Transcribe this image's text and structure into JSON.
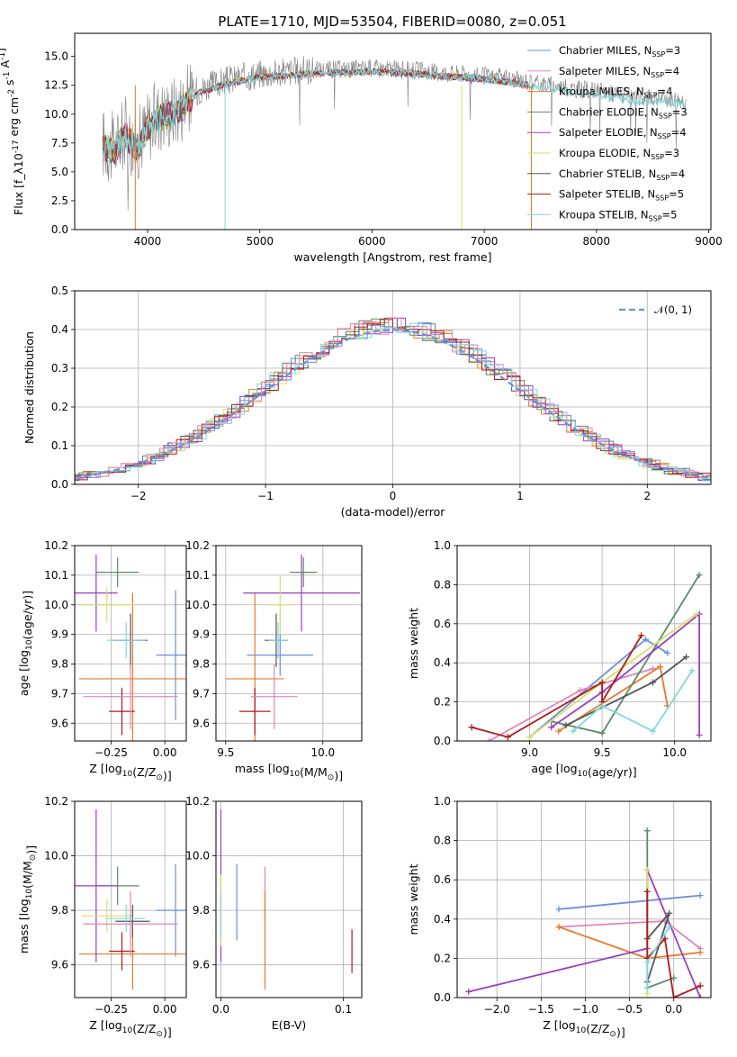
{
  "title": "PLATE=1710, MJD=53504, FIBERID=0080, z=0.051",
  "colors": [
    "#6a8fdc",
    "#e67b2a",
    "#5a8a6a",
    "#9b3fbf",
    "#d8df6a",
    "#555555",
    "#b01818",
    "#e086b8",
    "#80d8dc"
  ],
  "chart_data": [
    {
      "type": "line",
      "title": "PLATE=1710, MJD=53504, FIBERID=0080, z=0.051",
      "xlabel": "wavelength [Angstrom, rest frame]",
      "ylabel": "Flux [f_λ10^-17 erg cm^-2 s^-1 A^-1]",
      "xlim": [
        3350,
        9020
      ],
      "ylim": [
        0,
        17
      ],
      "xticks": [
        "4000",
        "5000",
        "6000",
        "7000",
        "8000",
        "9000"
      ],
      "yticks": [
        "0.0",
        "2.5",
        "5.0",
        "7.5",
        "10.0",
        "12.5",
        "15.0"
      ],
      "legend_position": "top-right",
      "legend": [
        {
          "pre": "Chabrier MILES, N",
          "sub": "SSP",
          "post": "=3",
          "color": "#6a8fdc"
        },
        {
          "pre": "Salpeter MILES, N",
          "sub": "SSP",
          "post": "=4",
          "color": "#e086b8"
        },
        {
          "pre": "Kroupa MILES, N",
          "sub": "SSP",
          "post": "=4",
          "color": "#e67b2a"
        },
        {
          "pre": "Chabrier ELODIE, N",
          "sub": "SSP",
          "post": "=3",
          "color": "#5a8a6a"
        },
        {
          "pre": "Salpeter ELODIE, N",
          "sub": "SSP",
          "post": "=4",
          "color": "#9b3fbf"
        },
        {
          "pre": "Kroupa ELODIE, N",
          "sub": "SSP",
          "post": "=3",
          "color": "#d8df6a"
        },
        {
          "pre": "Chabrier STELIB, N",
          "sub": "SSP",
          "post": "=4",
          "color": "#555555"
        },
        {
          "pre": "Salpeter STELIB, N",
          "sub": "SSP",
          "post": "=5",
          "color": "#b01818"
        },
        {
          "pre": "Kroupa STELIB, N",
          "sub": "SSP",
          "post": "=5",
          "color": "#80d8dc"
        }
      ],
      "continuum": {
        "x": [
          3600,
          3700,
          3800,
          3900,
          4000,
          4100,
          4200,
          4300,
          4400,
          4500,
          4600,
          4700,
          4800,
          4900,
          5000,
          5200,
          5400,
          5600,
          5800,
          6000,
          6200,
          6400,
          6600,
          6800,
          7000,
          7200,
          7400,
          7600,
          7800,
          8000,
          8200,
          8400,
          8600,
          8800
        ],
        "y": [
          7.5,
          7.0,
          8.5,
          7.2,
          9.0,
          10.0,
          10.2,
          10.8,
          11.8,
          12.3,
          12.6,
          12.9,
          13.1,
          13.3,
          13.5,
          13.6,
          13.8,
          13.9,
          13.9,
          14.0,
          13.9,
          13.8,
          13.6,
          13.5,
          13.3,
          13.1,
          12.8,
          12.5,
          12.2,
          12.0,
          11.7,
          11.4,
          11.4,
          11.2
        ]
      }
    },
    {
      "type": "step",
      "xlabel": "(data-model)/error",
      "ylabel": "Normed distribution",
      "xlim": [
        -2.5,
        2.5
      ],
      "ylim": [
        0,
        0.5
      ],
      "xticks": [
        "−2",
        "−1",
        "0",
        "1",
        "2"
      ],
      "yticks": [
        "0.0",
        "0.1",
        "0.2",
        "0.3",
        "0.4",
        "0.5"
      ],
      "legend": "𝒩(0, 1)",
      "legend_position": "top-right",
      "normal_curve": {
        "mean": 0,
        "sigma": 1
      }
    },
    {
      "type": "errorbar",
      "xlabel": "Z [log10(Z/Z☉)]",
      "ylabel": "age  [log10(age/yr)]",
      "xlim": [
        -0.42,
        0.1
      ],
      "ylim": [
        9.54,
        10.2
      ],
      "xticks": [
        "−0.25",
        "0.00"
      ],
      "yticks": [
        "9.6",
        "9.7",
        "9.8",
        "9.9",
        "10.0",
        "10.1",
        "10.2"
      ],
      "points": [
        {
          "x": 0.05,
          "xerr": 0.09,
          "y": 9.83,
          "yerr": 0.22,
          "color": "#6a8fdc"
        },
        {
          "x": -0.15,
          "xerr": 0.25,
          "y": 9.75,
          "yerr": 0.29,
          "color": "#e67b2a"
        },
        {
          "x": -0.22,
          "xerr": 0.1,
          "y": 10.11,
          "yerr": 0.05,
          "color": "#5a8a6a"
        },
        {
          "x": -0.32,
          "xerr": 0.1,
          "y": 10.04,
          "yerr": 0.13,
          "color": "#9b3fbf"
        },
        {
          "x": -0.27,
          "xerr": 0.13,
          "y": 10.0,
          "yerr": 0.06,
          "color": "#d8df6a"
        },
        {
          "x": -0.16,
          "xerr": 0.08,
          "y": 9.88,
          "yerr": 0.09,
          "color": "#555555"
        },
        {
          "x": -0.2,
          "xerr": 0.06,
          "y": 9.64,
          "yerr": 0.08,
          "color": "#b01818"
        },
        {
          "x": -0.16,
          "xerr": 0.22,
          "y": 9.69,
          "yerr": 0.11,
          "color": "#e086b8"
        },
        {
          "x": -0.18,
          "xerr": 0.09,
          "y": 9.88,
          "yerr": 0.06,
          "color": "#80d8dc"
        }
      ]
    },
    {
      "type": "errorbar",
      "xlabel": "mass [log10(M/M☉)]",
      "ylabel": "",
      "xlim": [
        9.45,
        10.2
      ],
      "ylim": [
        9.54,
        10.2
      ],
      "xticks": [
        "9.5",
        "10.0"
      ],
      "yticks": [
        "9.6",
        "9.7",
        "9.8",
        "9.9",
        "10.0",
        "10.1",
        "10.2"
      ],
      "points": [
        {
          "x": 9.78,
          "xerr": 0.17,
          "y": 9.83,
          "yerr": 0.07,
          "color": "#6a8fdc"
        },
        {
          "x": 9.65,
          "xerr": 0.15,
          "y": 9.75,
          "yerr": 0.29,
          "color": "#e67b2a"
        },
        {
          "x": 9.9,
          "xerr": 0.07,
          "y": 10.11,
          "yerr": 0.05,
          "color": "#5a8a6a"
        },
        {
          "x": 9.89,
          "xerr": 0.3,
          "y": 10.04,
          "yerr": 0.13,
          "color": "#9b3fbf"
        },
        {
          "x": 9.78,
          "xerr": 0.06,
          "y": 10.0,
          "yerr": 0.1,
          "color": "#d8df6a"
        },
        {
          "x": 9.76,
          "xerr": 0.06,
          "y": 9.88,
          "yerr": 0.09,
          "color": "#555555"
        },
        {
          "x": 9.65,
          "xerr": 0.08,
          "y": 9.64,
          "yerr": 0.08,
          "color": "#b01818"
        },
        {
          "x": 9.75,
          "xerr": 0.12,
          "y": 9.69,
          "yerr": 0.11,
          "color": "#e086b8"
        },
        {
          "x": 9.77,
          "xerr": 0.05,
          "y": 9.88,
          "yerr": 0.06,
          "color": "#80d8dc"
        }
      ]
    },
    {
      "type": "line",
      "xlabel": "age  [log10(age/yr)]",
      "ylabel": "mass weight",
      "xlim": [
        8.5,
        10.25
      ],
      "ylim": [
        0,
        1
      ],
      "xticks": [
        "9.0",
        "9.5",
        "10.0"
      ],
      "yticks": [
        "0.0",
        "0.2",
        "0.4",
        "0.6",
        "0.8",
        "1.0"
      ],
      "series": [
        {
          "color": "#6a8fdc",
          "x": [
            9.0,
            9.8,
            9.95
          ],
          "y": [
            0.02,
            0.52,
            0.45
          ]
        },
        {
          "color": "#e086b8",
          "x": [
            8.72,
            9.35,
            9.85
          ],
          "y": [
            0.0,
            0.26,
            0.37
          ]
        },
        {
          "color": "#e67b2a",
          "x": [
            9.2,
            9.9,
            9.95
          ],
          "y": [
            0.05,
            0.38,
            0.18
          ]
        },
        {
          "color": "#5a8a6a",
          "x": [
            9.15,
            9.5,
            10.17
          ],
          "y": [
            0.1,
            0.04,
            0.85
          ]
        },
        {
          "color": "#9b3fbf",
          "x": [
            9.15,
            9.5,
            10.17,
            10.17
          ],
          "y": [
            0.07,
            0.25,
            0.65,
            0.03
          ]
        },
        {
          "color": "#d8df6a",
          "x": [
            9.0,
            9.5,
            10.15
          ],
          "y": [
            0.02,
            0.3,
            0.65
          ]
        },
        {
          "color": "#555555",
          "x": [
            9.25,
            9.85,
            10.08
          ],
          "y": [
            0.08,
            0.3,
            0.43
          ]
        },
        {
          "color": "#b01818",
          "x": [
            8.6,
            8.85,
            9.5,
            9.5,
            9.77
          ],
          "y": [
            0.07,
            0.02,
            0.3,
            0.2,
            0.54
          ]
        },
        {
          "color": "#80d8dc",
          "x": [
            9.3,
            9.5,
            9.85,
            10.12
          ],
          "y": [
            0.05,
            0.18,
            0.05,
            0.36
          ]
        }
      ]
    },
    {
      "type": "errorbar",
      "xlabel": "Z [log10(Z/Z☉)]",
      "ylabel": "mass [log10(M/M☉)]",
      "xlim": [
        -0.42,
        0.1
      ],
      "ylim": [
        9.48,
        10.2
      ],
      "xticks": [
        "−0.25",
        "0.00"
      ],
      "yticks": [
        "9.6",
        "9.8",
        "10.0",
        "10.2"
      ],
      "points": [
        {
          "x": 0.05,
          "xerr": 0.09,
          "y": 9.8,
          "yerr": 0.17,
          "color": "#6a8fdc"
        },
        {
          "x": -0.15,
          "xerr": 0.25,
          "y": 9.64,
          "yerr": 0.13,
          "color": "#e67b2a"
        },
        {
          "x": -0.22,
          "xerr": 0.1,
          "y": 9.89,
          "yerr": 0.07,
          "color": "#5a8a6a"
        },
        {
          "x": -0.32,
          "xerr": 0.1,
          "y": 9.89,
          "yerr": 0.28,
          "color": "#9b3fbf"
        },
        {
          "x": -0.27,
          "xerr": 0.12,
          "y": 9.78,
          "yerr": 0.06,
          "color": "#d8df6a"
        },
        {
          "x": -0.15,
          "xerr": 0.08,
          "y": 9.76,
          "yerr": 0.06,
          "color": "#555555"
        },
        {
          "x": -0.2,
          "xerr": 0.06,
          "y": 9.65,
          "yerr": 0.07,
          "color": "#b01818"
        },
        {
          "x": -0.16,
          "xerr": 0.22,
          "y": 9.75,
          "yerr": 0.12,
          "color": "#e086b8"
        },
        {
          "x": -0.18,
          "xerr": 0.09,
          "y": 9.77,
          "yerr": 0.05,
          "color": "#80d8dc"
        }
      ]
    },
    {
      "type": "errorbar",
      "xlabel": "E(B-V)",
      "ylabel": "",
      "xlim": [
        -0.004,
        0.115
      ],
      "ylim": [
        9.48,
        10.2
      ],
      "xticks": [
        "0.0",
        "0.1"
      ],
      "yticks": [
        "9.6",
        "9.8",
        "10.0",
        "10.2"
      ],
      "points": [
        {
          "x": 0.0,
          "xerr": 0,
          "y": 9.89,
          "yerr": 0.28,
          "color": "#9b3fbf"
        },
        {
          "x": 0.0,
          "xerr": 0,
          "y": 9.8,
          "yerr": 0.13,
          "color": "#d8df6a"
        },
        {
          "x": 0.0,
          "xerr": 0,
          "y": 9.78,
          "yerr": 0.08,
          "color": "#80d8dc"
        },
        {
          "x": 0.013,
          "xerr": 0,
          "y": 9.83,
          "yerr": 0.14,
          "color": "#6a8fdc"
        },
        {
          "x": 0.036,
          "xerr": 0,
          "y": 9.86,
          "yerr": 0.1,
          "color": "#e086b8"
        },
        {
          "x": 0.036,
          "xerr": 0,
          "y": 9.69,
          "yerr": 0.18,
          "color": "#e67b2a"
        },
        {
          "x": 0.107,
          "xerr": 0,
          "y": 9.65,
          "yerr": 0.08,
          "color": "#b01818"
        }
      ]
    },
    {
      "type": "line",
      "xlabel": "Z [log10(Z/Z☉)]",
      "ylabel": "mass weight",
      "xlim": [
        -2.45,
        0.42
      ],
      "ylim": [
        0,
        1
      ],
      "xticks": [
        "−2.0",
        "−1.5",
        "−1.0",
        "−0.5",
        "0.0"
      ],
      "yticks": [
        "0.0",
        "0.2",
        "0.4",
        "0.6",
        "0.8",
        "1.0"
      ],
      "series": [
        {
          "color": "#6a8fdc",
          "x": [
            -1.3,
            0.3
          ],
          "y": [
            0.45,
            0.52
          ]
        },
        {
          "color": "#e086b8",
          "x": [
            -1.3,
            -0.1,
            0.3
          ],
          "y": [
            0.36,
            0.39,
            0.25
          ]
        },
        {
          "color": "#e67b2a",
          "x": [
            -1.3,
            -0.3,
            0.3
          ],
          "y": [
            0.36,
            0.2,
            0.23
          ]
        },
        {
          "color": "#5a8a6a",
          "x": [
            -0.3,
            -0.3,
            0.0,
            -0.3
          ],
          "y": [
            0.85,
            0.05,
            0.1,
            0.05
          ]
        },
        {
          "color": "#9b3fbf",
          "x": [
            -2.32,
            -0.3,
            -0.3,
            0.3
          ],
          "y": [
            0.03,
            0.25,
            0.65,
            0.0
          ]
        },
        {
          "color": "#d8df6a",
          "x": [
            -0.3,
            -0.3,
            -0.3
          ],
          "y": [
            0.65,
            0.3,
            0.02
          ]
        },
        {
          "color": "#555555",
          "x": [
            -0.3,
            -0.05,
            -0.3
          ],
          "y": [
            0.08,
            0.43,
            0.3
          ]
        },
        {
          "color": "#b01818",
          "x": [
            -0.3,
            -0.3,
            -0.1,
            0.0,
            0.3
          ],
          "y": [
            0.54,
            0.2,
            0.3,
            0.0,
            0.06
          ]
        },
        {
          "color": "#80d8dc",
          "x": [
            -0.3,
            -0.3,
            -0.05
          ],
          "y": [
            0.05,
            0.18,
            0.36
          ]
        }
      ]
    }
  ]
}
